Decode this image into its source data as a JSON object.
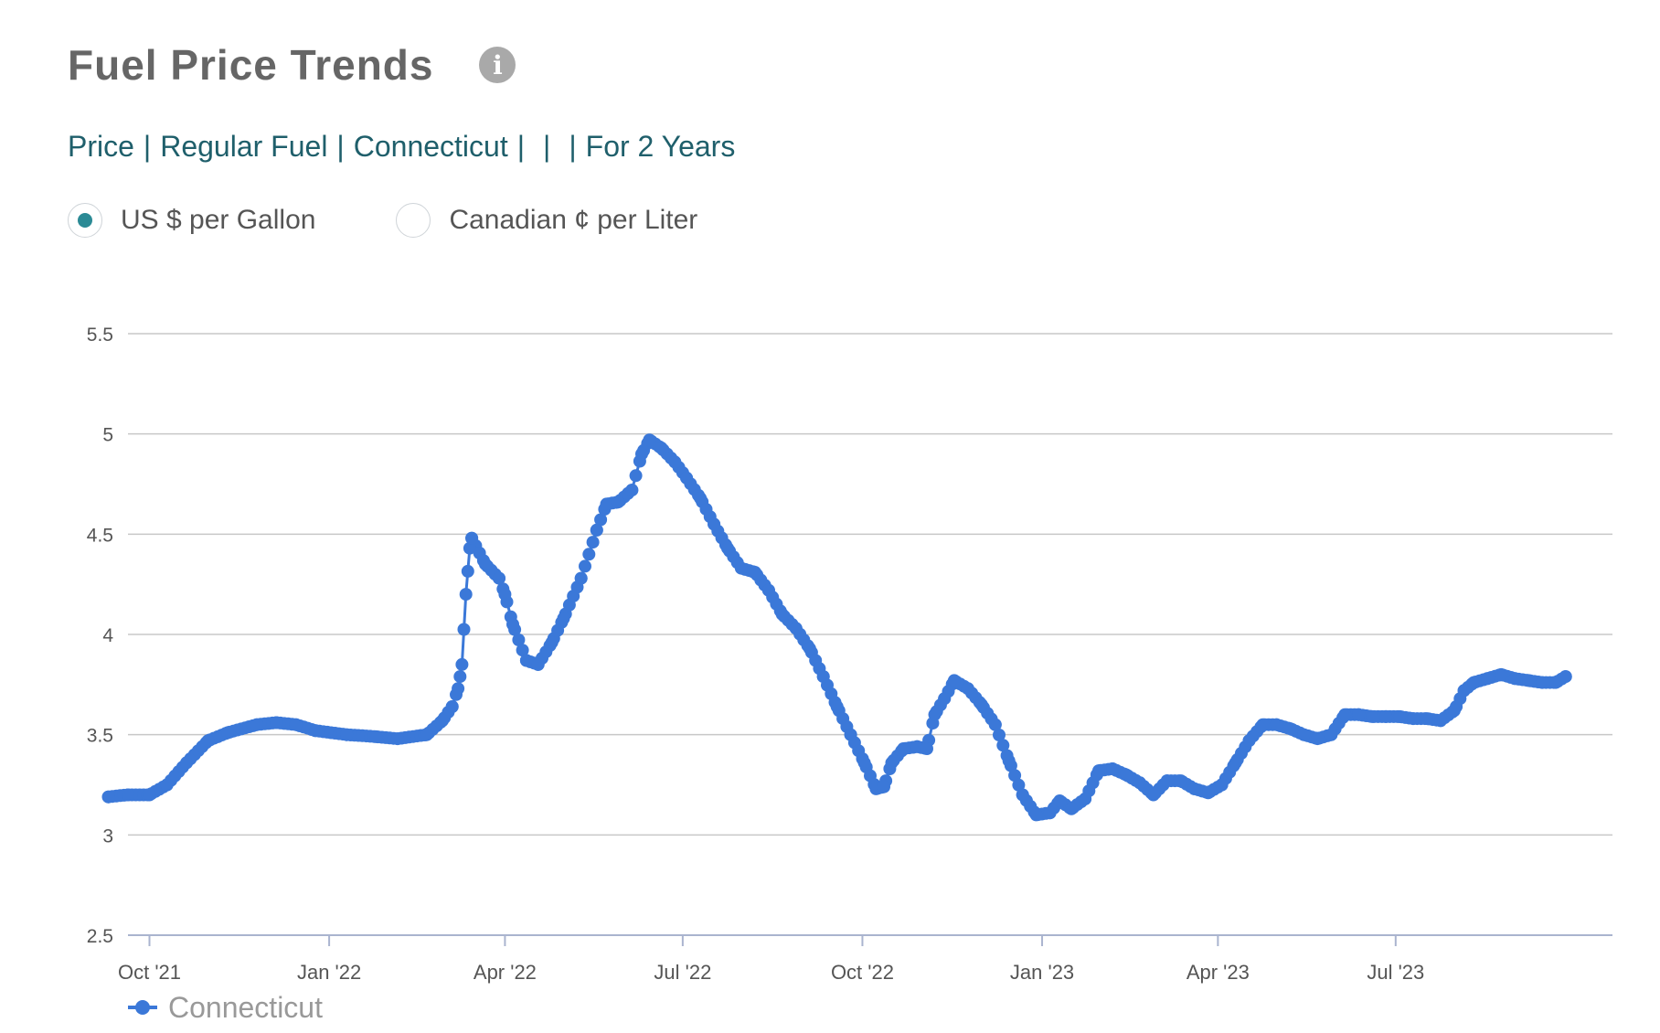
{
  "header": {
    "title": "Fuel Price Trends",
    "info_icon": "info-icon"
  },
  "filters": {
    "price": "Price",
    "fuel": "Regular Fuel",
    "region": "Connecticut",
    "blank1": "",
    "blank2": "",
    "period": "For 2 Years"
  },
  "units": {
    "options": [
      {
        "label": "US $ per Gallon",
        "selected": true
      },
      {
        "label": "Canadian ¢ per Liter",
        "selected": false
      }
    ]
  },
  "chart_data": {
    "type": "line",
    "title": "",
    "xlabel": "",
    "ylabel": "",
    "ylim": [
      2.5,
      5.5
    ],
    "yticks": [
      "2.5",
      "3",
      "3.5",
      "4",
      "4.5",
      "5",
      "5.5"
    ],
    "xticks": [
      {
        "label": "Oct '21",
        "date": "2021-10-01"
      },
      {
        "label": "Jan '22",
        "date": "2022-01-01"
      },
      {
        "label": "Apr '22",
        "date": "2022-04-01"
      },
      {
        "label": "Jul '22",
        "date": "2022-07-01"
      },
      {
        "label": "Oct '22",
        "date": "2022-10-01"
      },
      {
        "label": "Jan '23",
        "date": "2023-01-01"
      },
      {
        "label": "Apr '23",
        "date": "2023-04-01"
      },
      {
        "label": "Jul '23",
        "date": "2023-07-01"
      }
    ],
    "xlim": [
      "2021-09-20",
      "2023-10-20"
    ],
    "grid": true,
    "legend_position": "bottom-left",
    "color": "#3b78d8",
    "series": [
      {
        "name": "Connecticut",
        "points": [
          [
            "2021-09-10",
            3.19
          ],
          [
            "2021-09-20",
            3.2
          ],
          [
            "2021-10-01",
            3.2
          ],
          [
            "2021-10-10",
            3.25
          ],
          [
            "2021-10-20",
            3.36
          ],
          [
            "2021-10-31",
            3.47
          ],
          [
            "2021-11-10",
            3.51
          ],
          [
            "2021-11-25",
            3.55
          ],
          [
            "2021-12-05",
            3.56
          ],
          [
            "2021-12-15",
            3.55
          ],
          [
            "2021-12-25",
            3.52
          ],
          [
            "2022-01-10",
            3.5
          ],
          [
            "2022-01-25",
            3.49
          ],
          [
            "2022-02-05",
            3.48
          ],
          [
            "2022-02-20",
            3.5
          ],
          [
            "2022-02-28",
            3.57
          ],
          [
            "2022-03-05",
            3.64
          ],
          [
            "2022-03-08",
            3.73
          ],
          [
            "2022-03-10",
            3.85
          ],
          [
            "2022-03-12",
            4.2
          ],
          [
            "2022-03-14",
            4.43
          ],
          [
            "2022-03-15",
            4.48
          ],
          [
            "2022-03-22",
            4.35
          ],
          [
            "2022-03-29",
            4.28
          ],
          [
            "2022-04-01",
            4.2
          ],
          [
            "2022-04-05",
            4.05
          ],
          [
            "2022-04-12",
            3.87
          ],
          [
            "2022-04-18",
            3.85
          ],
          [
            "2022-04-25",
            3.96
          ],
          [
            "2022-05-01",
            4.08
          ],
          [
            "2022-05-10",
            4.28
          ],
          [
            "2022-05-18",
            4.52
          ],
          [
            "2022-05-23",
            4.65
          ],
          [
            "2022-05-29",
            4.66
          ],
          [
            "2022-06-05",
            4.72
          ],
          [
            "2022-06-10",
            4.9
          ],
          [
            "2022-06-14",
            4.97
          ],
          [
            "2022-06-20",
            4.93
          ],
          [
            "2022-06-27",
            4.86
          ],
          [
            "2022-07-03",
            4.78
          ],
          [
            "2022-07-10",
            4.68
          ],
          [
            "2022-07-17",
            4.55
          ],
          [
            "2022-07-24",
            4.43
          ],
          [
            "2022-07-31",
            4.33
          ],
          [
            "2022-08-07",
            4.31
          ],
          [
            "2022-08-14",
            4.22
          ],
          [
            "2022-08-21",
            4.1
          ],
          [
            "2022-08-28",
            4.03
          ],
          [
            "2022-09-04",
            3.93
          ],
          [
            "2022-09-11",
            3.79
          ],
          [
            "2022-09-18",
            3.64
          ],
          [
            "2022-09-25",
            3.5
          ],
          [
            "2022-10-02",
            3.36
          ],
          [
            "2022-10-08",
            3.23
          ],
          [
            "2022-10-12",
            3.24
          ],
          [
            "2022-10-16",
            3.36
          ],
          [
            "2022-10-22",
            3.43
          ],
          [
            "2022-10-29",
            3.44
          ],
          [
            "2022-11-03",
            3.43
          ],
          [
            "2022-11-07",
            3.6
          ],
          [
            "2022-11-12",
            3.68
          ],
          [
            "2022-11-17",
            3.77
          ],
          [
            "2022-11-24",
            3.73
          ],
          [
            "2022-12-01",
            3.65
          ],
          [
            "2022-12-08",
            3.55
          ],
          [
            "2022-12-15",
            3.37
          ],
          [
            "2022-12-22",
            3.2
          ],
          [
            "2022-12-29",
            3.1
          ],
          [
            "2023-01-05",
            3.11
          ],
          [
            "2023-01-10",
            3.17
          ],
          [
            "2023-01-16",
            3.13
          ],
          [
            "2023-01-23",
            3.18
          ],
          [
            "2023-01-30",
            3.32
          ],
          [
            "2023-02-06",
            3.33
          ],
          [
            "2023-02-13",
            3.3
          ],
          [
            "2023-02-20",
            3.26
          ],
          [
            "2023-02-27",
            3.2
          ],
          [
            "2023-03-06",
            3.27
          ],
          [
            "2023-03-13",
            3.27
          ],
          [
            "2023-03-20",
            3.23
          ],
          [
            "2023-03-27",
            3.21
          ],
          [
            "2023-04-03",
            3.25
          ],
          [
            "2023-04-10",
            3.36
          ],
          [
            "2023-04-17",
            3.47
          ],
          [
            "2023-04-24",
            3.55
          ],
          [
            "2023-05-01",
            3.55
          ],
          [
            "2023-05-08",
            3.53
          ],
          [
            "2023-05-15",
            3.5
          ],
          [
            "2023-05-22",
            3.48
          ],
          [
            "2023-05-29",
            3.5
          ],
          [
            "2023-06-05",
            3.6
          ],
          [
            "2023-06-12",
            3.6
          ],
          [
            "2023-06-19",
            3.59
          ],
          [
            "2023-06-26",
            3.59
          ],
          [
            "2023-07-03",
            3.59
          ],
          [
            "2023-07-10",
            3.58
          ],
          [
            "2023-07-17",
            3.58
          ],
          [
            "2023-07-24",
            3.57
          ],
          [
            "2023-07-31",
            3.62
          ],
          [
            "2023-08-05",
            3.72
          ],
          [
            "2023-08-10",
            3.76
          ],
          [
            "2023-08-17",
            3.78
          ],
          [
            "2023-08-24",
            3.8
          ],
          [
            "2023-08-31",
            3.78
          ],
          [
            "2023-09-07",
            3.77
          ],
          [
            "2023-09-14",
            3.76
          ],
          [
            "2023-09-21",
            3.76
          ],
          [
            "2023-09-26",
            3.79
          ]
        ]
      }
    ]
  }
}
